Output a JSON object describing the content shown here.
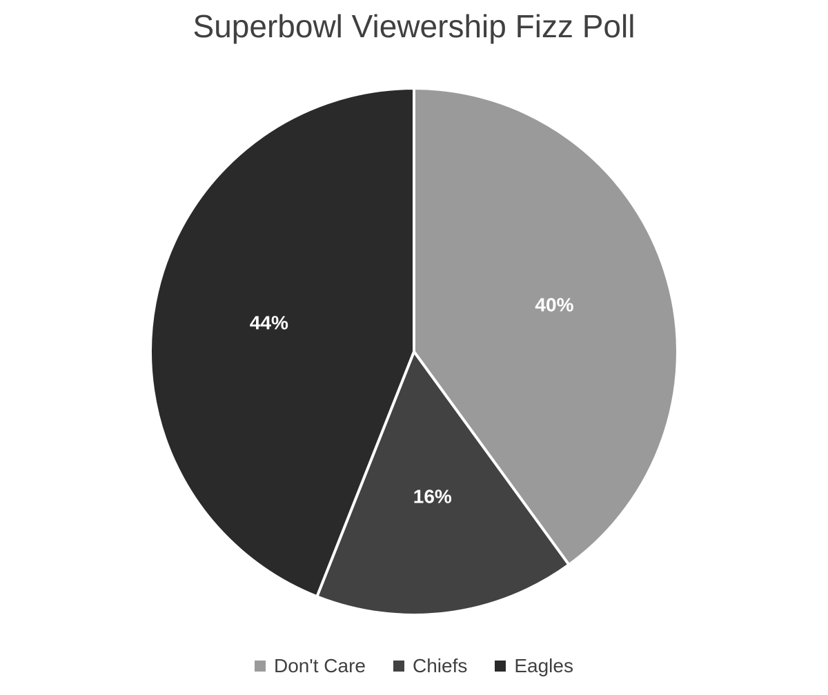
{
  "chart_data": {
    "type": "pie",
    "title": "Superbowl Viewership Fizz Poll",
    "start_angle_deg": 0,
    "direction": "clockwise",
    "legend_position": "bottom",
    "slices": [
      {
        "name": "Don't Care",
        "value": 40,
        "label": "40%",
        "color": "#9a9a9a"
      },
      {
        "name": "Chiefs",
        "value": 16,
        "label": "16%",
        "color": "#424242"
      },
      {
        "name": "Eagles",
        "value": 44,
        "label": "44%",
        "color": "#2a2a2a"
      }
    ]
  }
}
